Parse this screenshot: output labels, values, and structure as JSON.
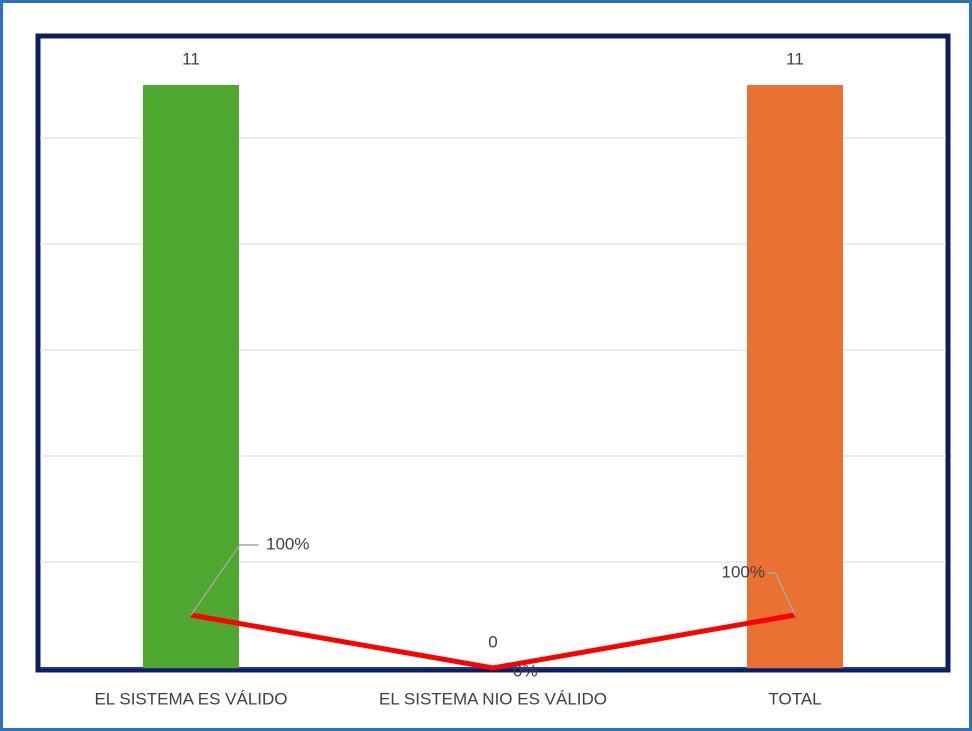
{
  "chart_data": {
    "type": "bar",
    "categories": [
      "EL SISTEMA ES VÁLIDO",
      "EL SISTEMA NIO ES VÁLIDO",
      "TOTAL"
    ],
    "series": [
      {
        "type": "bar",
        "colors": [
          "#4ea72e",
          "#156082",
          "#e97132"
        ],
        "values": [
          11,
          0,
          11
        ]
      },
      {
        "type": "line",
        "color": "#ff0000",
        "values": [
          1,
          0,
          1
        ],
        "value_labels": [
          "100%",
          "0%",
          "100%"
        ]
      }
    ],
    "ylim": [
      0,
      12
    ],
    "yticks": [
      0,
      2,
      4,
      6,
      8,
      10,
      12
    ],
    "grid": true
  }
}
